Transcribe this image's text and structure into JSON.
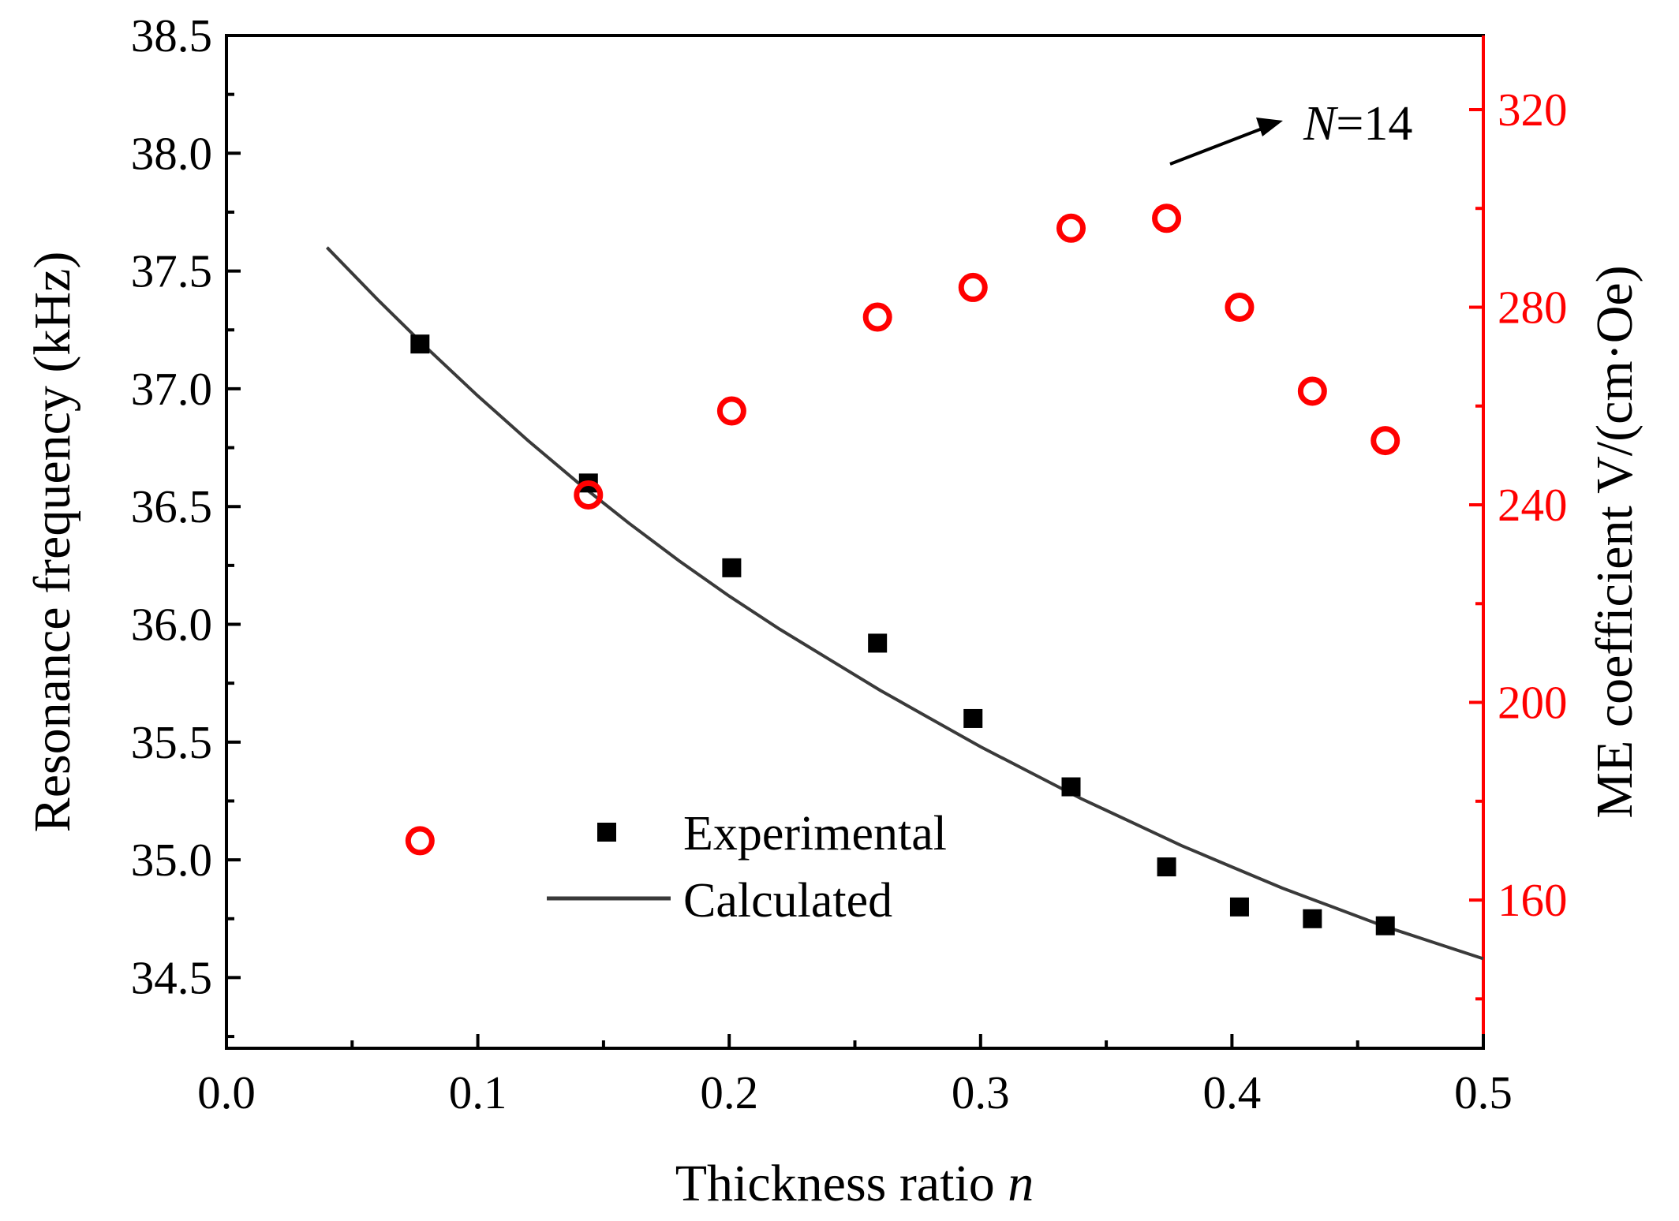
{
  "chart_data": {
    "type": "scatter",
    "x_axis": {
      "label": "Thickness ratio ",
      "label_italic": "n",
      "range": [
        0.0,
        0.5
      ],
      "ticks": [
        "0.0",
        "0.1",
        "0.2",
        "0.3",
        "0.4",
        "0.5"
      ],
      "tick_values": [
        0.0,
        0.1,
        0.2,
        0.3,
        0.4,
        0.5
      ]
    },
    "y_axis_left": {
      "label": "Resonance frequency (kHz)",
      "range": [
        34.2,
        38.5
      ],
      "ticks": [
        "34.5",
        "35.0",
        "35.5",
        "36.0",
        "36.5",
        "37.0",
        "37.5",
        "38.0",
        "38.5"
      ],
      "tick_values": [
        34.5,
        35.0,
        35.5,
        36.0,
        36.5,
        37.0,
        37.5,
        38.0,
        38.5
      ]
    },
    "y_axis_right": {
      "label": "ME coefficient V/(cm·Oe)",
      "range": [
        130,
        335
      ],
      "ticks": [
        "160",
        "200",
        "240",
        "280",
        "320"
      ],
      "tick_values": [
        160,
        200,
        240,
        280,
        320
      ],
      "color": "#ff0000"
    },
    "series": [
      {
        "name": "Experimental",
        "axis": "left",
        "marker": "square",
        "color": "#000000",
        "x": [
          0.077,
          0.144,
          0.201,
          0.259,
          0.297,
          0.336,
          0.374,
          0.403,
          0.432,
          0.461
        ],
        "y": [
          37.19,
          36.6,
          36.24,
          35.92,
          35.6,
          35.31,
          34.97,
          34.8,
          34.75,
          34.72
        ]
      },
      {
        "name": "Calculated",
        "axis": "left",
        "type": "line",
        "color": "#3a3a3a",
        "x": [
          0.04,
          0.06,
          0.08,
          0.1,
          0.12,
          0.14,
          0.16,
          0.18,
          0.2,
          0.22,
          0.24,
          0.26,
          0.28,
          0.3,
          0.32,
          0.34,
          0.36,
          0.38,
          0.4,
          0.42,
          0.44,
          0.46,
          0.48,
          0.5
        ],
        "y": [
          37.6,
          37.38,
          37.17,
          36.97,
          36.78,
          36.6,
          36.43,
          36.27,
          36.12,
          35.98,
          35.85,
          35.72,
          35.6,
          35.48,
          35.37,
          35.26,
          35.16,
          35.06,
          34.97,
          34.88,
          34.8,
          34.72,
          34.65,
          34.58
        ]
      },
      {
        "name": "",
        "axis": "right",
        "marker": "open-circle",
        "color": "#ff0000",
        "x": [
          0.077,
          0.144,
          0.201,
          0.259,
          0.297,
          0.336,
          0.374,
          0.403,
          0.432,
          0.461
        ],
        "y": [
          172,
          242,
          259,
          278,
          284,
          296,
          298,
          280,
          263,
          253
        ]
      }
    ],
    "annotation": {
      "text_italic": "N",
      "text": "=14",
      "points_to_series_index": 6
    },
    "legend": {
      "placement": "bottom-center",
      "entries": [
        "Experimental",
        "Calculated"
      ]
    },
    "grid": false
  }
}
